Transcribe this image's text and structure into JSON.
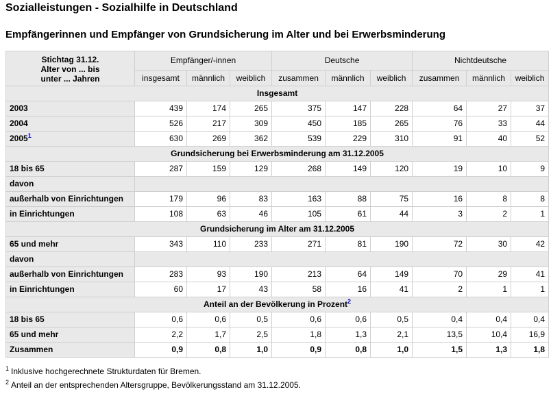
{
  "page_title": "Sozialleistungen - Sozialhilfe in Deutschland",
  "table_title": "Empfängerinnen und Empfänger von Grundsicherung im Alter und bei Erwerbsminderung",
  "header": {
    "corner_lines": [
      "Stichtag 31.12.",
      "Alter von ... bis",
      "unter ... Jahren"
    ],
    "groups": [
      "Empfänger/-innen",
      "Deutsche",
      "Nichtdeutsche"
    ],
    "sub": [
      "insgesamt",
      "männlich",
      "weiblich",
      "zusammen",
      "männlich",
      "weiblich",
      "zusammen",
      "männlich",
      "weiblich"
    ]
  },
  "sections": [
    {
      "title": "Insgesamt",
      "title_sup": "",
      "rows": [
        {
          "label": "2003",
          "sup": "",
          "values": [
            "439",
            "174",
            "265",
            "375",
            "147",
            "228",
            "64",
            "27",
            "37"
          ]
        },
        {
          "label": "2004",
          "sup": "",
          "values": [
            "526",
            "217",
            "309",
            "450",
            "185",
            "265",
            "76",
            "33",
            "44"
          ]
        },
        {
          "label": "2005",
          "sup": "1",
          "values": [
            "630",
            "269",
            "362",
            "539",
            "229",
            "310",
            "91",
            "40",
            "52"
          ]
        }
      ]
    },
    {
      "title": "Grundsicherung bei Erwerbsminderung am 31.12.2005",
      "title_sup": "",
      "rows": [
        {
          "label": "18 bis 65",
          "sup": "",
          "values": [
            "287",
            "159",
            "129",
            "268",
            "149",
            "120",
            "19",
            "10",
            "9"
          ]
        },
        {
          "label": "davon",
          "sup": "",
          "values": []
        },
        {
          "label": "außerhalb von Einrichtungen",
          "sup": "",
          "values": [
            "179",
            "96",
            "83",
            "163",
            "88",
            "75",
            "16",
            "8",
            "8"
          ]
        },
        {
          "label": "in Einrichtungen",
          "sup": "",
          "values": [
            "108",
            "63",
            "46",
            "105",
            "61",
            "44",
            "3",
            "2",
            "1"
          ]
        }
      ]
    },
    {
      "title": "Grundsicherung im Alter am 31.12.2005",
      "title_sup": "",
      "rows": [
        {
          "label": "65 und mehr",
          "sup": "",
          "values": [
            "343",
            "110",
            "233",
            "271",
            "81",
            "190",
            "72",
            "30",
            "42"
          ]
        },
        {
          "label": "davon",
          "sup": "",
          "values": []
        },
        {
          "label": "außerhalb von Einrichtungen",
          "sup": "",
          "values": [
            "283",
            "93",
            "190",
            "213",
            "64",
            "149",
            "70",
            "29",
            "41"
          ]
        },
        {
          "label": "in Einrichtungen",
          "sup": "",
          "values": [
            "60",
            "17",
            "43",
            "58",
            "16",
            "41",
            "2",
            "1",
            "1"
          ]
        }
      ]
    },
    {
      "title": "Anteil an der Bevölkerung in Prozent",
      "title_sup": "2",
      "rows": [
        {
          "label": "18 bis 65",
          "sup": "",
          "values": [
            "0,6",
            "0,6",
            "0,5",
            "0,6",
            "0,6",
            "0,5",
            "0,4",
            "0,4",
            "0,4"
          ]
        },
        {
          "label": "65 und mehr",
          "sup": "",
          "values": [
            "2,2",
            "1,7",
            "2,5",
            "1,8",
            "1,3",
            "2,1",
            "13,5",
            "10,4",
            "16,9"
          ]
        },
        {
          "label": "Zusammen",
          "sup": "",
          "total": true,
          "values": [
            "0,9",
            "0,8",
            "1,0",
            "0,9",
            "0,8",
            "1,0",
            "1,5",
            "1,3",
            "1,8"
          ]
        }
      ]
    }
  ],
  "footnotes": [
    {
      "mark": "1",
      "text": "Inklusive hochgerechnete Strukturdaten für Bremen."
    },
    {
      "mark": "2",
      "text": "Anteil an der entsprechenden Altersgruppe, Bevölkerungsstand am 31.12.2005."
    }
  ],
  "colors": {
    "header_bg": "#e9e9e9",
    "border": "#cfcfcf",
    "footnote_link": "#0000cc"
  }
}
